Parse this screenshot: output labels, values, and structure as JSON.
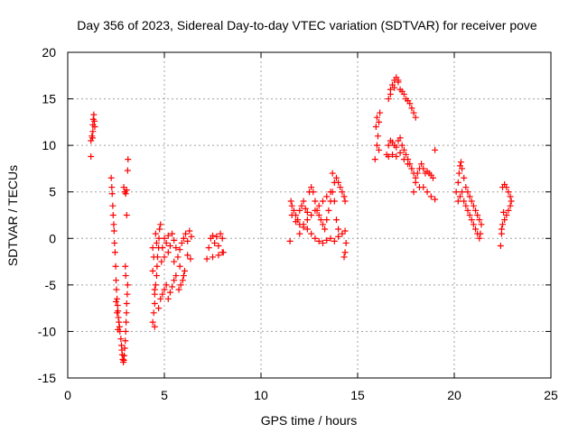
{
  "chart_data": {
    "type": "scatter",
    "title": "Day 356 of 2023, Sidereal Day-to-day VTEC variation (SDTVAR) for receiver pove",
    "xlabel": "GPS time / hours",
    "ylabel": "SDTVAR / TECUs",
    "xlim": [
      0,
      25
    ],
    "ylim": [
      -15,
      20
    ],
    "xticks": [
      "0",
      "5",
      "10",
      "15",
      "20",
      "25"
    ],
    "yticks": [
      "-15",
      "-10",
      "-5",
      "0",
      "5",
      "10",
      "15",
      "20"
    ],
    "xtick_values": [
      0,
      5,
      10,
      15,
      20,
      25
    ],
    "ytick_values": [
      -15,
      -10,
      -5,
      0,
      5,
      10,
      15,
      20
    ],
    "grid": true,
    "marker": "+",
    "colors": {
      "series": "#ff0000",
      "axis": "#000000",
      "grid": "#a0a0a0"
    },
    "series": [
      {
        "name": "SDTVAR",
        "points": [
          [
            1.2,
            8.8
          ],
          [
            1.2,
            10.5
          ],
          [
            1.25,
            11.0
          ],
          [
            1.3,
            11.5
          ],
          [
            1.3,
            12.2
          ],
          [
            1.32,
            12.8
          ],
          [
            1.35,
            13.3
          ],
          [
            1.38,
            12.6
          ],
          [
            1.4,
            12.0
          ],
          [
            1.28,
            10.8
          ],
          [
            2.25,
            6.5
          ],
          [
            2.28,
            5.5
          ],
          [
            2.3,
            4.8
          ],
          [
            2.33,
            3.5
          ],
          [
            2.35,
            2.5
          ],
          [
            2.38,
            1.5
          ],
          [
            2.4,
            0.8
          ],
          [
            2.42,
            -0.5
          ],
          [
            2.45,
            -1.5
          ],
          [
            2.48,
            -3.0
          ],
          [
            2.5,
            -4.5
          ],
          [
            2.52,
            -5.5
          ],
          [
            2.55,
            -6.5
          ],
          [
            2.58,
            -7.2
          ],
          [
            2.6,
            -7.8
          ],
          [
            2.62,
            -8.5
          ],
          [
            2.65,
            -9.0
          ],
          [
            2.68,
            -9.5
          ],
          [
            2.7,
            -10.0
          ],
          [
            2.5,
            -6.8
          ],
          [
            2.55,
            -8.0
          ],
          [
            2.6,
            -9.8
          ],
          [
            2.75,
            -10.8
          ],
          [
            2.78,
            -11.5
          ],
          [
            2.8,
            -12.0
          ],
          [
            2.82,
            -12.5
          ],
          [
            2.85,
            -13.0
          ],
          [
            2.88,
            -13.3
          ],
          [
            2.9,
            -13.1
          ],
          [
            2.92,
            -12.6
          ],
          [
            2.95,
            -11.8
          ],
          [
            2.98,
            -11.0
          ],
          [
            3.0,
            -10.0
          ],
          [
            3.02,
            -9.0
          ],
          [
            3.04,
            -8.0
          ],
          [
            3.05,
            -7.0
          ],
          [
            3.08,
            -6.0
          ],
          [
            3.1,
            -5.0
          ],
          [
            3.0,
            -4.0
          ],
          [
            2.98,
            -3.0
          ],
          [
            2.9,
            5.5
          ],
          [
            2.95,
            5.0
          ],
          [
            3.0,
            4.8
          ],
          [
            3.05,
            5.2
          ],
          [
            3.1,
            7.3
          ],
          [
            3.12,
            8.5
          ],
          [
            3.05,
            2.5
          ],
          [
            4.4,
            -9.0
          ],
          [
            4.45,
            -8.0
          ],
          [
            4.5,
            -7.0
          ],
          [
            4.5,
            -6.0
          ],
          [
            4.55,
            -5.0
          ],
          [
            4.6,
            -4.0
          ],
          [
            4.62,
            -3.0
          ],
          [
            4.65,
            -2.0
          ],
          [
            4.7,
            -1.0
          ],
          [
            4.72,
            0.0
          ],
          [
            4.75,
            1.0
          ],
          [
            4.8,
            1.5
          ],
          [
            4.4,
            -1.0
          ],
          [
            4.45,
            -2.0
          ],
          [
            4.55,
            0.5
          ],
          [
            4.6,
            -0.5
          ],
          [
            4.4,
            -3.5
          ],
          [
            4.5,
            -5.5
          ],
          [
            4.5,
            -9.5
          ],
          [
            4.85,
            -2.5
          ],
          [
            4.9,
            -1.0
          ],
          [
            5.0,
            0.0
          ],
          [
            5.1,
            -0.5
          ],
          [
            5.2,
            0.3
          ],
          [
            5.3,
            -0.8
          ],
          [
            5.4,
            0.5
          ],
          [
            5.5,
            -0.2
          ],
          [
            5.6,
            -1.0
          ],
          [
            5.7,
            -2.0
          ],
          [
            5.8,
            -1.2
          ],
          [
            5.9,
            -0.5
          ],
          [
            6.0,
            0.0
          ],
          [
            6.1,
            0.5
          ],
          [
            6.2,
            -0.3
          ],
          [
            6.3,
            0.8
          ],
          [
            6.4,
            0.2
          ],
          [
            5.0,
            -2.0
          ],
          [
            5.2,
            -1.5
          ],
          [
            5.5,
            -2.5
          ],
          [
            5.8,
            -3.0
          ],
          [
            6.2,
            -1.8
          ],
          [
            6.35,
            -2.2
          ],
          [
            4.7,
            -7.5
          ],
          [
            4.8,
            -6.5
          ],
          [
            4.9,
            -6.0
          ],
          [
            5.0,
            -5.5
          ],
          [
            5.1,
            -5.0
          ],
          [
            5.2,
            -6.5
          ],
          [
            5.3,
            -5.8
          ],
          [
            5.4,
            -5.2
          ],
          [
            5.5,
            -4.5
          ],
          [
            5.6,
            -4.0
          ],
          [
            5.75,
            -5.5
          ],
          [
            5.85,
            -5.0
          ],
          [
            5.95,
            -4.5
          ],
          [
            6.0,
            -4.0
          ],
          [
            6.05,
            -3.5
          ],
          [
            7.2,
            -2.2
          ],
          [
            7.3,
            -1.0
          ],
          [
            7.4,
            0.0
          ],
          [
            7.5,
            0.3
          ],
          [
            7.6,
            -0.5
          ],
          [
            7.7,
            0.2
          ],
          [
            7.8,
            -0.8
          ],
          [
            7.9,
            0.5
          ],
          [
            8.0,
            0.0
          ],
          [
            8.05,
            -1.5
          ],
          [
            7.5,
            -2.0
          ],
          [
            7.8,
            -1.8
          ],
          [
            8.0,
            -1.5
          ],
          [
            11.5,
            -0.3
          ],
          [
            11.55,
            4.0
          ],
          [
            11.6,
            3.5
          ],
          [
            11.7,
            3.0
          ],
          [
            11.8,
            2.5
          ],
          [
            11.9,
            2.0
          ],
          [
            12.0,
            3.0
          ],
          [
            12.1,
            3.5
          ],
          [
            12.2,
            4.0
          ],
          [
            12.3,
            3.2
          ],
          [
            12.4,
            2.8
          ],
          [
            12.5,
            5.0
          ],
          [
            12.6,
            5.5
          ],
          [
            12.7,
            5.0
          ],
          [
            12.8,
            4.0
          ],
          [
            12.9,
            3.0
          ],
          [
            13.0,
            2.5
          ],
          [
            13.1,
            2.0
          ],
          [
            13.2,
            1.5
          ],
          [
            13.3,
            1.0
          ],
          [
            13.4,
            2.0
          ],
          [
            13.5,
            3.0
          ],
          [
            13.6,
            4.0
          ],
          [
            13.7,
            5.0
          ],
          [
            13.8,
            6.0
          ],
          [
            13.9,
            6.5
          ],
          [
            14.0,
            6.0
          ],
          [
            14.1,
            5.5
          ],
          [
            14.2,
            5.0
          ],
          [
            14.3,
            4.5
          ],
          [
            14.35,
            4.0
          ],
          [
            11.6,
            2.5
          ],
          [
            11.8,
            1.8
          ],
          [
            12.0,
            1.5
          ],
          [
            12.2,
            1.2
          ],
          [
            12.4,
            1.0
          ],
          [
            12.6,
            0.5
          ],
          [
            12.8,
            0.0
          ],
          [
            13.0,
            -0.3
          ],
          [
            13.2,
            -0.5
          ],
          [
            13.4,
            -0.2
          ],
          [
            13.6,
            0.0
          ],
          [
            13.8,
            -0.3
          ],
          [
            14.0,
            0.2
          ],
          [
            14.2,
            0.5
          ],
          [
            14.35,
            0.8
          ],
          [
            14.4,
            -0.5
          ],
          [
            14.35,
            -1.5
          ],
          [
            14.3,
            -2.0
          ],
          [
            12.0,
            0.5
          ],
          [
            12.2,
            1.5
          ],
          [
            12.4,
            2.0
          ],
          [
            12.6,
            2.5
          ],
          [
            12.8,
            3.0
          ],
          [
            13.0,
            3.5
          ],
          [
            13.2,
            4.0
          ],
          [
            13.4,
            4.5
          ],
          [
            13.6,
            5.0
          ],
          [
            13.8,
            4.0
          ],
          [
            13.9,
            2.0
          ],
          [
            14.0,
            1.0
          ],
          [
            13.7,
            7.0
          ],
          [
            15.9,
            8.5
          ],
          [
            16.0,
            10.0
          ],
          [
            16.05,
            11.0
          ],
          [
            16.1,
            12.5
          ],
          [
            16.15,
            13.5
          ],
          [
            16.0,
            13.0
          ],
          [
            15.95,
            12.0
          ],
          [
            16.1,
            9.5
          ],
          [
            16.6,
            15.0
          ],
          [
            16.7,
            16.0
          ],
          [
            16.8,
            16.5
          ],
          [
            16.9,
            17.0
          ],
          [
            17.0,
            17.3
          ],
          [
            17.1,
            16.8
          ],
          [
            17.2,
            16.0
          ],
          [
            17.3,
            15.8
          ],
          [
            17.4,
            15.5
          ],
          [
            17.5,
            15.0
          ],
          [
            17.6,
            14.8
          ],
          [
            17.7,
            14.5
          ],
          [
            17.8,
            14.0
          ],
          [
            17.9,
            13.5
          ],
          [
            18.0,
            13.0
          ],
          [
            16.7,
            15.5
          ],
          [
            16.9,
            16.2
          ],
          [
            17.1,
            17.0
          ],
          [
            16.5,
            9.0
          ],
          [
            16.6,
            10.0
          ],
          [
            16.7,
            10.5
          ],
          [
            16.8,
            10.3
          ],
          [
            16.9,
            10.0
          ],
          [
            17.0,
            9.8
          ],
          [
            17.1,
            10.5
          ],
          [
            17.2,
            10.8
          ],
          [
            17.3,
            10.0
          ],
          [
            17.4,
            9.5
          ],
          [
            17.5,
            9.0
          ],
          [
            17.6,
            8.5
          ],
          [
            17.7,
            8.0
          ],
          [
            17.8,
            7.5
          ],
          [
            17.9,
            7.0
          ],
          [
            18.0,
            6.5
          ],
          [
            18.1,
            7.0
          ],
          [
            18.2,
            7.5
          ],
          [
            18.3,
            8.0
          ],
          [
            18.4,
            7.5
          ],
          [
            18.5,
            7.0
          ],
          [
            18.6,
            7.2
          ],
          [
            18.7,
            7.0
          ],
          [
            18.8,
            6.8
          ],
          [
            18.9,
            6.5
          ],
          [
            19.0,
            9.5
          ],
          [
            16.6,
            8.8
          ],
          [
            16.8,
            9.0
          ],
          [
            17.0,
            8.8
          ],
          [
            17.2,
            9.2
          ],
          [
            17.4,
            8.5
          ],
          [
            17.6,
            8.0
          ],
          [
            17.8,
            7.5
          ],
          [
            18.0,
            6.0
          ],
          [
            18.2,
            5.5
          ],
          [
            18.4,
            5.5
          ],
          [
            18.6,
            5.0
          ],
          [
            18.8,
            4.5
          ],
          [
            19.0,
            4.2
          ],
          [
            17.9,
            5.0
          ],
          [
            20.1,
            5.0
          ],
          [
            20.2,
            6.0
          ],
          [
            20.25,
            7.0
          ],
          [
            20.3,
            7.8
          ],
          [
            20.35,
            8.2
          ],
          [
            20.4,
            7.5
          ],
          [
            20.5,
            6.5
          ],
          [
            20.6,
            5.5
          ],
          [
            20.7,
            5.0
          ],
          [
            20.8,
            4.5
          ],
          [
            20.9,
            4.0
          ],
          [
            21.0,
            3.5
          ],
          [
            21.1,
            3.0
          ],
          [
            21.2,
            2.5
          ],
          [
            21.3,
            2.0
          ],
          [
            21.4,
            1.5
          ],
          [
            20.2,
            4.0
          ],
          [
            20.3,
            4.5
          ],
          [
            20.4,
            5.0
          ],
          [
            20.5,
            4.0
          ],
          [
            20.6,
            3.5
          ],
          [
            20.7,
            3.0
          ],
          [
            20.8,
            2.5
          ],
          [
            20.9,
            2.0
          ],
          [
            21.0,
            1.5
          ],
          [
            21.1,
            1.0
          ],
          [
            21.2,
            0.5
          ],
          [
            21.3,
            0.0
          ],
          [
            21.35,
            0.5
          ],
          [
            22.4,
            -0.8
          ],
          [
            22.45,
            1.0
          ],
          [
            22.5,
            1.5
          ],
          [
            22.6,
            2.0
          ],
          [
            22.7,
            2.5
          ],
          [
            22.8,
            3.0
          ],
          [
            22.9,
            3.5
          ],
          [
            22.95,
            4.0
          ],
          [
            22.5,
            5.5
          ],
          [
            22.6,
            5.8
          ],
          [
            22.7,
            5.5
          ],
          [
            22.8,
            5.0
          ],
          [
            22.9,
            4.5
          ],
          [
            22.45,
            0.5
          ],
          [
            22.55,
            2.8
          ]
        ]
      }
    ]
  }
}
